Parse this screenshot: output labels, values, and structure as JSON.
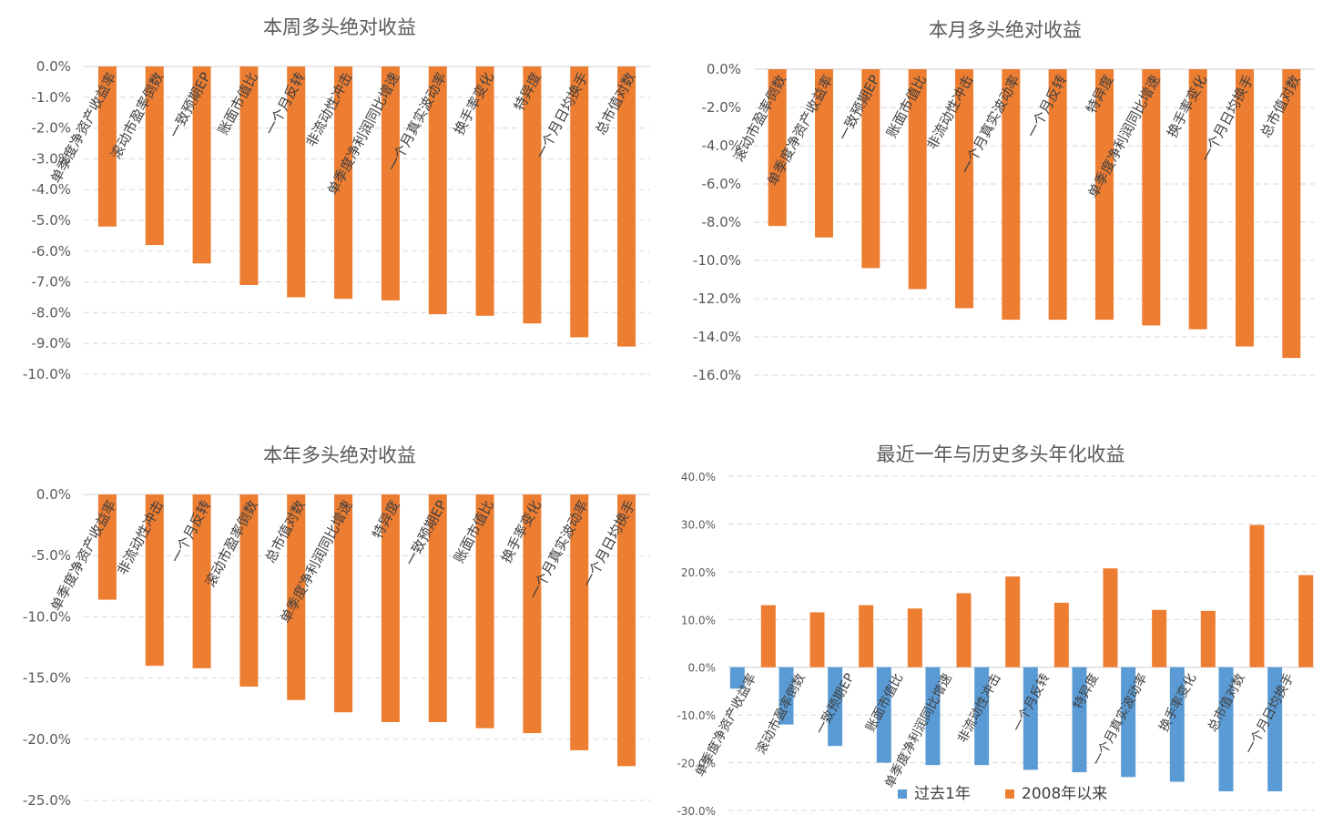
{
  "colors": {
    "long": "#ed7d31",
    "recent": "#5b9bd5",
    "text": "#595959",
    "grid": "#d9d9d9"
  },
  "chart_data": [
    {
      "type": "bar",
      "title": "本周多头绝对收益",
      "categories": [
        "单季度净资产收益率",
        "滚动市盈率倒数",
        "一致预期EP",
        "账面市值比",
        "一个月反转",
        "非流动性冲击",
        "单季度净利润同比增速",
        "一个月真实波动率",
        "换手率变化",
        "特异度",
        "一个月日均换手",
        "总市值对数"
      ],
      "series": [
        {
          "values": [
            -5.2,
            -5.8,
            -6.4,
            -7.1,
            -7.5,
            -7.55,
            -7.6,
            -8.05,
            -8.1,
            -8.35,
            -8.8,
            -9.1
          ]
        }
      ],
      "ylim": [
        -10,
        0
      ],
      "yticks": [
        0,
        -1,
        -2,
        -3,
        -4,
        -5,
        -6,
        -7,
        -8,
        -9,
        -10
      ],
      "ytick_labels": [
        "0.0%",
        "-1.0%",
        "-2.0%",
        "-3.0%",
        "-4.0%",
        "-5.0%",
        "-6.0%",
        "-7.0%",
        "-8.0%",
        "-9.0%",
        "-10.0%"
      ],
      "grid": true
    },
    {
      "type": "bar",
      "title": "本月多头绝对收益",
      "categories": [
        "滚动市盈率倒数",
        "单季度净资产收益率",
        "一致预期EP",
        "账面市值比",
        "非流动性冲击",
        "一个月真实波动率",
        "一个月反转",
        "特异度",
        "单季度净利润同比增速",
        "换手率变化",
        "一个月日均换手",
        "总市值对数"
      ],
      "series": [
        {
          "values": [
            -8.2,
            -8.8,
            -10.4,
            -11.5,
            -12.5,
            -13.1,
            -13.1,
            -13.1,
            -13.4,
            -13.6,
            -14.5,
            -15.1
          ]
        }
      ],
      "ylim": [
        -16,
        0
      ],
      "yticks": [
        0,
        -2,
        -4,
        -6,
        -8,
        -10,
        -12,
        -14,
        -16
      ],
      "ytick_labels": [
        "0.0%",
        "-2.0%",
        "-4.0%",
        "-6.0%",
        "-8.0%",
        "-10.0%",
        "-12.0%",
        "-14.0%",
        "-16.0%"
      ],
      "grid": true
    },
    {
      "type": "bar",
      "title": "本年多头绝对收益",
      "categories": [
        "单季度净资产收益率",
        "非流动性冲击",
        "一个月反转",
        "滚动市盈率倒数",
        "总市值对数",
        "单季度净利润同比增速",
        "特异度",
        "一致预期EP",
        "账面市值比",
        "换手率变化",
        "一个月真实波动率",
        "一个月日均换手"
      ],
      "series": [
        {
          "values": [
            -8.6,
            -14.0,
            -14.2,
            -15.7,
            -16.8,
            -17.8,
            -18.6,
            -18.6,
            -19.1,
            -19.5,
            -20.9,
            -22.2
          ]
        }
      ],
      "ylim": [
        -25,
        0
      ],
      "yticks": [
        0,
        -5,
        -10,
        -15,
        -20,
        -25
      ],
      "ytick_labels": [
        "0.0%",
        "-5.0%",
        "-10.0%",
        "-15.0%",
        "-20.0%",
        "-25.0%"
      ],
      "grid": true
    },
    {
      "type": "bar",
      "title": "最近一年与历史多头年化收益",
      "categories": [
        "单季度净资产收益率",
        "滚动市盈率倒数",
        "一致预期EP",
        "账面市值比",
        "单季度净利润同比增速",
        "非流动性冲击",
        "一个月反转",
        "特异度",
        "一个月真实波动率",
        "换手率变化",
        "总市值对数",
        "一个月日均换手"
      ],
      "series": [
        {
          "name": "过去1年",
          "values": [
            -4.5,
            -12.0,
            -16.5,
            -20.0,
            -20.5,
            -20.5,
            -21.5,
            -22.0,
            -23.0,
            -24.0,
            -26.0,
            -26.0
          ]
        },
        {
          "name": "2008年以来",
          "values": [
            13.0,
            11.5,
            13.0,
            12.3,
            15.5,
            19.0,
            13.5,
            20.7,
            12.0,
            11.8,
            29.8,
            19.3
          ]
        }
      ],
      "ylim": [
        -30,
        40
      ],
      "yticks": [
        40,
        30,
        20,
        10,
        0,
        -10,
        -20,
        -30
      ],
      "ytick_labels": [
        "40.0%",
        "30.0%",
        "20.0%",
        "10.0%",
        "0.0%",
        "-10.0%",
        "-20.0%",
        "-30.0%"
      ],
      "legend": "bottom",
      "grid": true
    }
  ]
}
